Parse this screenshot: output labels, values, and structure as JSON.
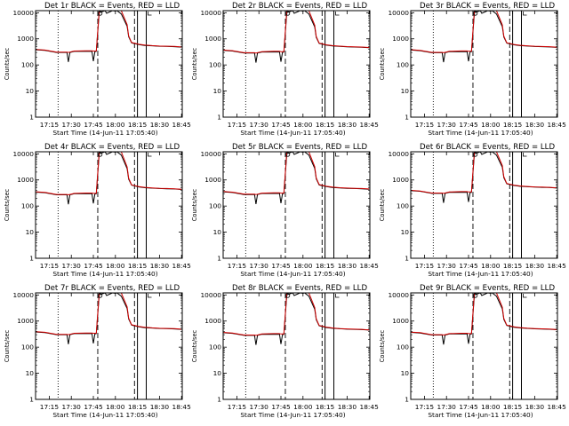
{
  "chart_data": {
    "type": "line",
    "layout": "3x3 grid",
    "yscale": "log",
    "ylim": [
      1,
      12000
    ],
    "yticks": [
      1,
      10,
      100,
      1000,
      10000
    ],
    "ytick_labels": [
      "1",
      "10",
      "100",
      "1000",
      "10000"
    ],
    "ylabel": "Counts/sec",
    "xlabel": "Start Time (14-Jun-11 17:05:40)",
    "xlim": [
      "17:05:40",
      "18:45:30"
    ],
    "xticks": [
      "17:15",
      "17:30",
      "17:45",
      "18:00",
      "18:15",
      "18:30",
      "18:45"
    ],
    "colors": {
      "events": "#000000",
      "lld": "#d40000"
    },
    "series_shape": {
      "time": [
        "17:06",
        "17:12",
        "17:20",
        "17:27",
        "17:28",
        "17:29",
        "17:32",
        "17:40",
        "17:44",
        "17:45",
        "17:46",
        "17:47",
        "17:49",
        "17:53",
        "17:54",
        "17:58",
        "18:00",
        "18:01",
        "18:04",
        "18:08",
        "18:09",
        "18:11",
        "18:16",
        "18:20",
        "18:25",
        "18:30",
        "18:35",
        "18:40",
        "18:45"
      ],
      "events": [
        380,
        360,
        300,
        300,
        130,
        300,
        330,
        330,
        330,
        140,
        320,
        330,
        10000,
        12000,
        9500,
        12000,
        11500,
        12000,
        9000,
        3000,
        1200,
        700,
        600,
        560,
        540,
        520,
        510,
        500,
        480
      ],
      "lld": [
        390,
        370,
        310,
        310,
        300,
        310,
        340,
        350,
        350,
        340,
        340,
        340,
        12000,
        12000,
        12000,
        12000,
        12000,
        12000,
        12000,
        3500,
        1300,
        720,
        620,
        580,
        550,
        530,
        520,
        510,
        490
      ]
    },
    "markers": {
      "dotted": [
        "17:21"
      ],
      "dashed": [
        "17:48",
        "18:13"
      ],
      "solid": [
        "18:15",
        "18:21"
      ]
    },
    "panels": [
      {
        "title": "Det 1r BLACK = Events, RED = LLD",
        "scale": 1.0
      },
      {
        "title": "Det 2r BLACK = Events, RED = LLD",
        "scale": 0.95
      },
      {
        "title": "Det 3r BLACK = Events, RED = LLD",
        "scale": 0.98
      },
      {
        "title": "Det 4r BLACK = Events, RED = LLD",
        "scale": 0.9
      },
      {
        "title": "Det 5r BLACK = Events, RED = LLD",
        "scale": 0.92
      },
      {
        "title": "Det 6r BLACK = Events, RED = LLD",
        "scale": 1.02
      },
      {
        "title": "Det 7r BLACK = Events, RED = LLD",
        "scale": 1.0
      },
      {
        "title": "Det 8r BLACK = Events, RED = LLD",
        "scale": 0.94
      },
      {
        "title": "Det 9r BLACK = Events, RED = LLD",
        "scale": 0.97
      }
    ]
  }
}
